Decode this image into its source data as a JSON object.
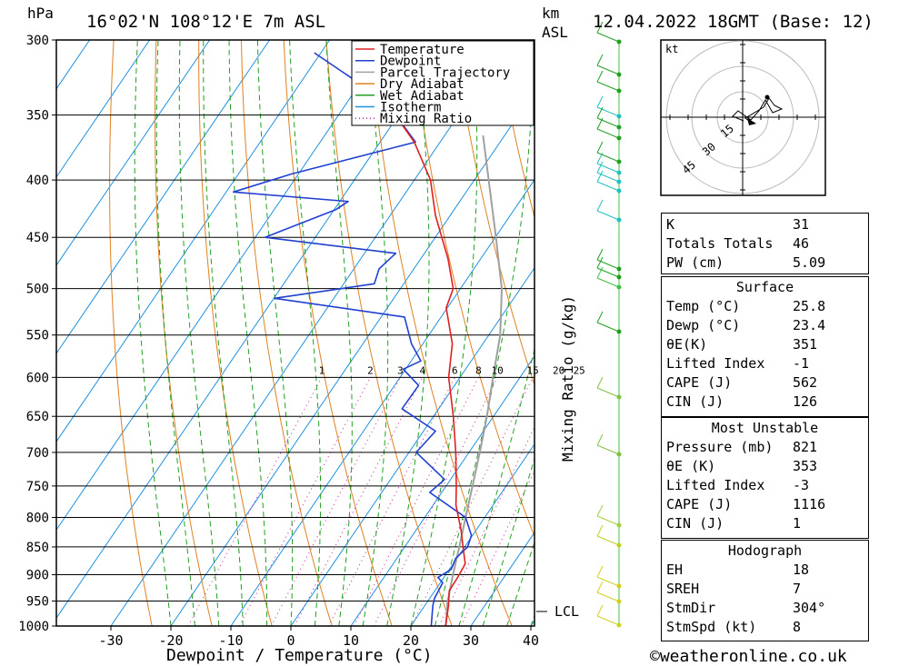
{
  "header": {
    "hpa_unit": "hPa",
    "location": "16°02'N 108°12'E 7m ASL",
    "km_unit": "km",
    "asl": "ASL",
    "datetime": "12.04.2022 18GMT (Base: 12)"
  },
  "footer": {
    "x_axis_label": "Dewpoint / Temperature (°C)",
    "mixing_ratio_axis_label": "Mixing Ratio (g/kg)",
    "copyright": "©weatheronline.co.uk"
  },
  "legend": {
    "items": [
      {
        "label": "Temperature",
        "color": "#e02020",
        "style": "solid"
      },
      {
        "label": "Dewpoint",
        "color": "#2040d0",
        "style": "solid"
      },
      {
        "label": "Parcel Trajectory",
        "color": "#a0a0a0",
        "style": "solid"
      },
      {
        "label": "Dry Adiabat",
        "color": "#e08020",
        "style": "solid"
      },
      {
        "label": "Wet Adiabat",
        "color": "#20a020",
        "style": "solid"
      },
      {
        "label": "Isotherm",
        "color": "#2090e0",
        "style": "solid"
      },
      {
        "label": "Mixing Ratio",
        "color": "#c020a0",
        "style": "dotted"
      }
    ]
  },
  "lcl_label": "LCL",
  "hodograph": {
    "unit_label": "kt",
    "ring_labels": [
      "15",
      "30",
      "45"
    ]
  },
  "indices": {
    "rows": [
      {
        "key": "K",
        "value": "31"
      },
      {
        "key": "Totals Totals",
        "value": "46"
      },
      {
        "key": "PW (cm)",
        "value": "5.09"
      }
    ]
  },
  "surface": {
    "title": "Surface",
    "rows": [
      {
        "key": "Temp (°C)",
        "value": "25.8"
      },
      {
        "key": "Dewp (°C)",
        "value": "23.4"
      },
      {
        "key": "θE(K)",
        "value": "351"
      },
      {
        "key": "Lifted Index",
        "value": "-1"
      },
      {
        "key": "CAPE (J)",
        "value": "562"
      },
      {
        "key": "CIN (J)",
        "value": "126"
      }
    ]
  },
  "most_unstable": {
    "title": "Most Unstable",
    "rows": [
      {
        "key": "Pressure (mb)",
        "value": "821"
      },
      {
        "key": "θE (K)",
        "value": "353"
      },
      {
        "key": "Lifted Index",
        "value": "-3"
      },
      {
        "key": "CAPE (J)",
        "value": "1116"
      },
      {
        "key": "CIN (J)",
        "value": "1"
      }
    ]
  },
  "hodograph_table": {
    "title": "Hodograph",
    "rows": [
      {
        "key": "EH",
        "value": "18"
      },
      {
        "key": "SREH",
        "value": "7"
      },
      {
        "key": "StmDir",
        "value": "304°"
      },
      {
        "key": "StmSpd (kt)",
        "value": "8"
      }
    ]
  },
  "chart_data": {
    "type": "skew-t",
    "title": "16°02'N 108°12'E 7m ASL",
    "xlabel": "Dewpoint / Temperature (°C)",
    "ylabel": "hPa",
    "x_ticks": [
      -30,
      -20,
      -10,
      0,
      10,
      20,
      30,
      40
    ],
    "y_ticks": [
      300,
      350,
      400,
      450,
      500,
      550,
      600,
      650,
      700,
      750,
      800,
      850,
      900,
      950,
      1000
    ],
    "y_scale": "log",
    "mixing_ratio_labels": [
      "1",
      "2",
      "3",
      "4",
      "6",
      "8",
      "10",
      "15",
      "20",
      "25"
    ],
    "temperature": {
      "name": "Temperature",
      "pressure": [
        1000,
        960,
        930,
        905,
        880,
        860,
        820,
        780,
        750,
        700,
        650,
        600,
        560,
        520,
        500,
        470,
        430,
        400,
        370,
        340
      ],
      "temp": [
        25.8,
        24,
        22.4,
        22.3,
        22,
        20.5,
        17.4,
        13.8,
        11.7,
        7.8,
        3.3,
        -1.9,
        -5.1,
        -10.2,
        -11.2,
        -15.5,
        -22.5,
        -27.3,
        -34.3,
        -43.8
      ]
    },
    "dewpoint": {
      "name": "Dewpoint",
      "pressure": [
        1000,
        960,
        945,
        930,
        915,
        905,
        890,
        870,
        850,
        830,
        800,
        760,
        740,
        700,
        670,
        640,
        610,
        590,
        580,
        560,
        530,
        510,
        495,
        480,
        465,
        450,
        425,
        418,
        410,
        395,
        370,
        340,
        308
      ],
      "temp": [
        23.4,
        21.4,
        20.8,
        20.6,
        20.4,
        19.0,
        20.3,
        19.8,
        20.5,
        19.8,
        16.8,
        8.0,
        9.0,
        1.2,
        2.0,
        -6.1,
        -6.0,
        -10.4,
        -8.4,
        -11.9,
        -16.1,
        -39.9,
        -24.9,
        -25.8,
        -24.8,
        -48.4,
        -39.7,
        -38.6,
        -58.8,
        -51.1,
        -34.1,
        -43.8,
        -61.1
      ]
    },
    "parcel": {
      "name": "Parcel Trajectory",
      "pressure": [
        1000,
        950,
        900,
        850,
        800,
        750,
        700,
        650,
        600,
        550,
        500,
        450,
        400,
        365
      ],
      "temp": [
        25.8,
        23.3,
        21.2,
        19.1,
        16.8,
        14.4,
        11.8,
        8.9,
        5.5,
        1.9,
        -3.1,
        -9.9,
        -17.6,
        -23.6
      ]
    }
  }
}
